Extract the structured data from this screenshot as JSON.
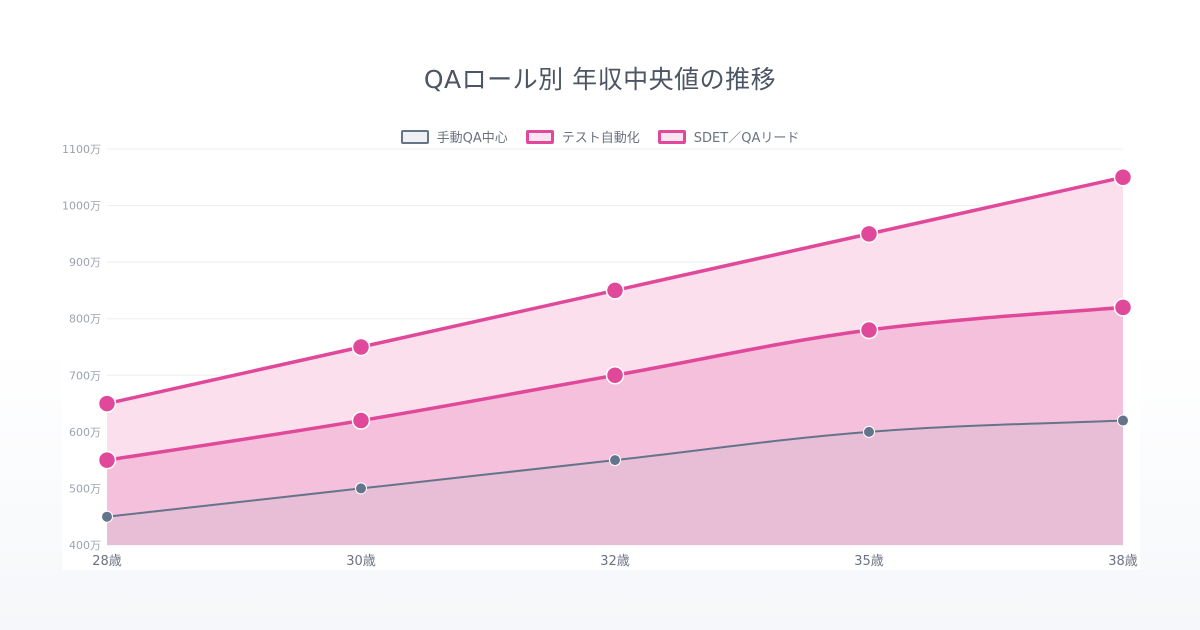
{
  "chart_data": {
    "type": "area",
    "title": "QAロール別 年収中央値の推移",
    "xlabel": "",
    "ylabel": "",
    "categories": [
      "28歳",
      "30歳",
      "32歳",
      "35歳",
      "38歳"
    ],
    "ylim": [
      400,
      1100
    ],
    "y_ticks": [
      "400万",
      "500万",
      "600万",
      "700万",
      "800万",
      "900万",
      "1000万",
      "1100万"
    ],
    "y_tick_values": [
      400,
      500,
      600,
      700,
      800,
      900,
      1000,
      1100
    ],
    "legend_position": "top-center",
    "grid": true,
    "series": [
      {
        "name": "手動QA中心",
        "values": [
          450,
          500,
          550,
          600,
          620
        ],
        "color": "#64748b",
        "fill": "#e8bdd6"
      },
      {
        "name": "テスト自動化",
        "values": [
          550,
          620,
          700,
          780,
          820
        ],
        "color": "#e0489a",
        "fill": "#f5c0dc"
      },
      {
        "name": "SDET／QAリード",
        "values": [
          650,
          750,
          850,
          950,
          1050
        ],
        "color": "#e0489a",
        "fill": "#fcdfec"
      }
    ]
  }
}
